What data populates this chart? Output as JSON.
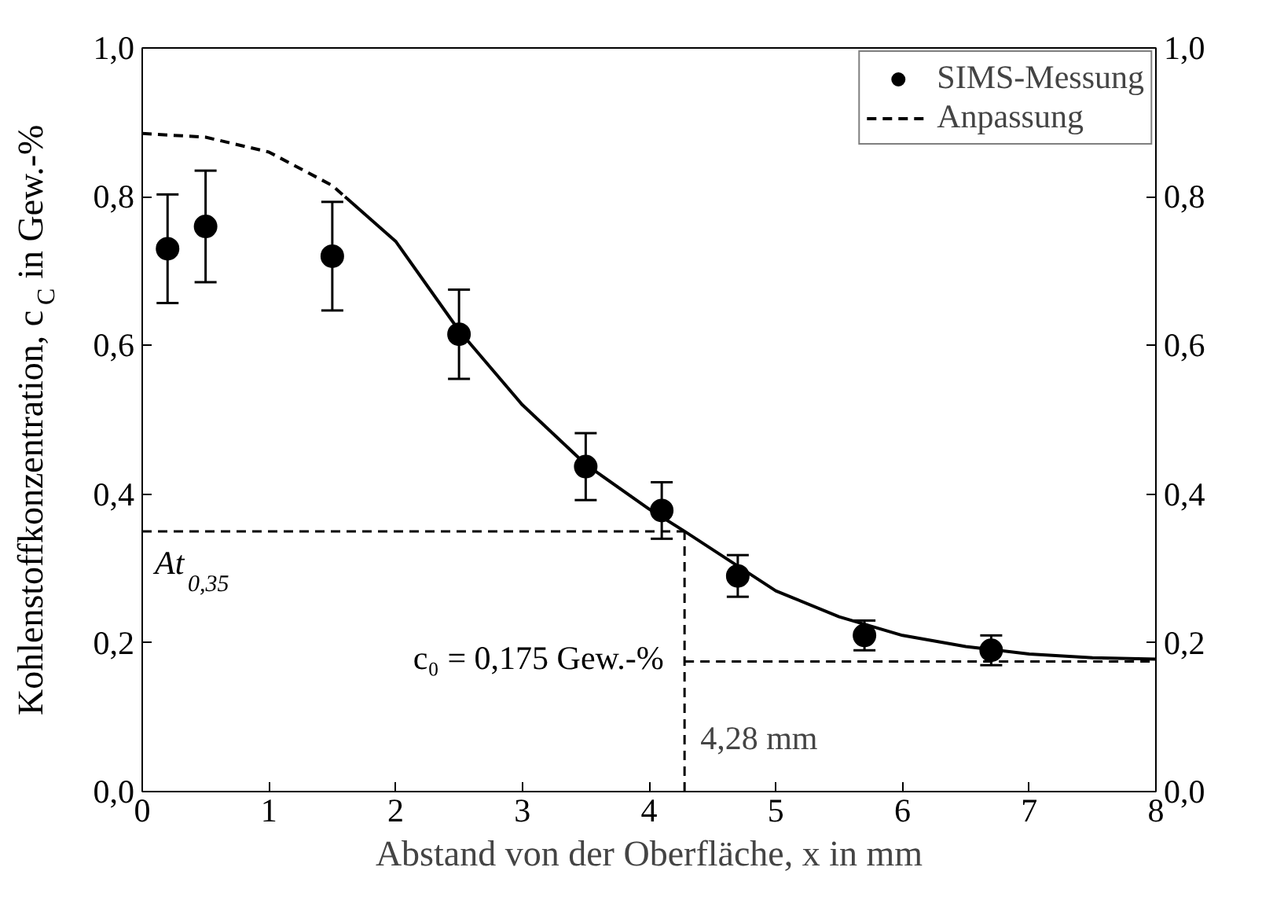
{
  "chart_data": {
    "type": "line",
    "xlabel": "Abstand von der Oberfläche, x in mm",
    "ylabel": "Kohlenstoffkonzentration, c$_{C}$ in Gew.-%",
    "xlim": [
      0,
      8
    ],
    "xticks": [
      0,
      1,
      2,
      3,
      4,
      5,
      6,
      7,
      8
    ],
    "ylim": [
      0,
      1
    ],
    "yticks": [
      {
        "value": 0,
        "label": "0,0"
      },
      {
        "value": 0.2,
        "label": "0,2"
      },
      {
        "value": 0.4,
        "label": "0,4"
      },
      {
        "value": 0.6,
        "label": "0,6"
      },
      {
        "value": 0.8,
        "label": "0,8"
      },
      {
        "value": 1,
        "label": "1,0"
      }
    ],
    "y2lim": [
      0,
      1
    ],
    "y2ticks": [
      {
        "value": 0,
        "label": "0,0"
      },
      {
        "value": 0.2,
        "label": "0,2"
      },
      {
        "value": 0.4,
        "label": "0,4"
      },
      {
        "value": 0.6,
        "label": "0,6"
      },
      {
        "value": 0.8,
        "label": "0,8"
      },
      {
        "value": 1,
        "label": "1,0"
      }
    ],
    "grid": false,
    "legend": "top right",
    "series": [
      {
        "name": "SIMS-Messung",
        "type": "scatter",
        "marker": "circle",
        "color": "#000000",
        "x": [
          0.2,
          0.5,
          1.5,
          2.5,
          3.5,
          4.1,
          4.7,
          5.7,
          6.7
        ],
        "values": [
          0.73,
          0.76,
          0.72,
          0.615,
          0.437,
          0.378,
          0.29,
          0.21,
          0.19
        ],
        "errors": [
          0.073,
          0.075,
          0.073,
          0.06,
          0.045,
          0.038,
          0.028,
          0.02,
          0.02
        ]
      },
      {
        "name": "Anpassung",
        "line_style": "dashed",
        "color": "#000000",
        "x": [
          0,
          0.5,
          1,
          1.5,
          1.6
        ],
        "values": [
          0.885,
          0.88,
          0.86,
          0.815,
          0.8
        ]
      },
      {
        "line_style": "solid",
        "color": "#000000",
        "x": [
          1.6,
          2,
          2.5,
          3,
          3.5,
          4,
          4.28,
          5,
          5.5,
          6,
          6.5,
          7,
          7.5,
          8
        ],
        "values": [
          0.8,
          0.74,
          0.62,
          0.52,
          0.44,
          0.38,
          0.35,
          0.27,
          0.235,
          0.21,
          0.195,
          0.185,
          0.18,
          0.178
        ]
      }
    ],
    "ref_lines": [
      {
        "axis": "y",
        "value": 0.35,
        "label": "At$_{0,35}$",
        "line_style": "dashed",
        "color": "#000000"
      },
      {
        "axis": "x",
        "value": 4.28,
        "label": "4,28 mm",
        "line_style": "dashed",
        "color": "#000000"
      },
      {
        "axis": "y",
        "value": 0.175,
        "label": "c₀ = 0,175 Gew.-%",
        "line_style": "dashed",
        "color": "#000000"
      }
    ]
  }
}
